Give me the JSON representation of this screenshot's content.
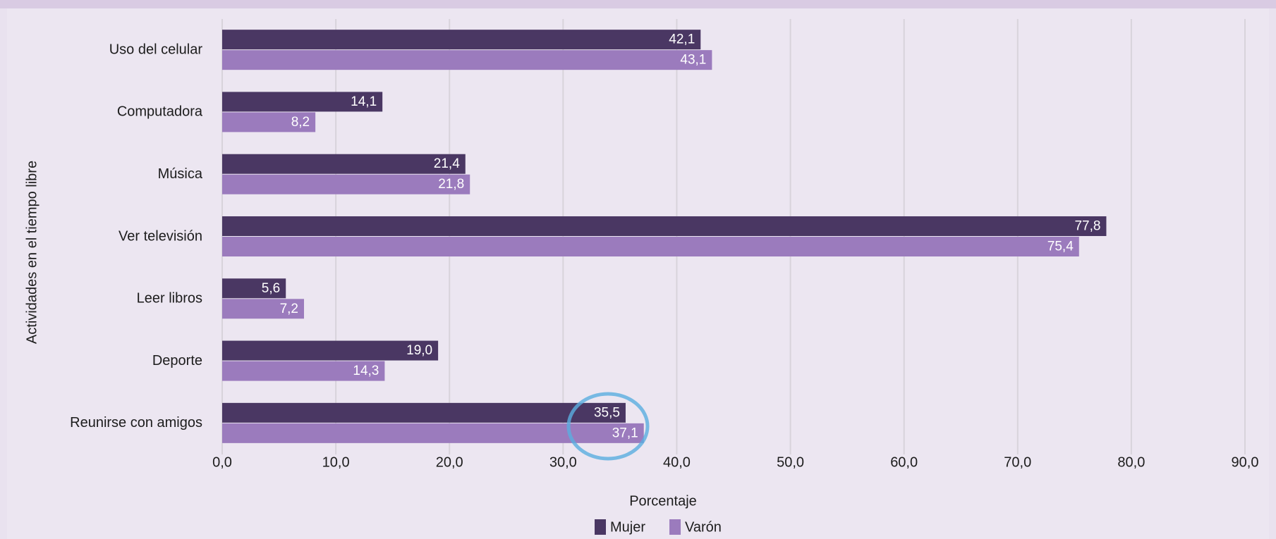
{
  "chart_data": {
    "type": "hbar",
    "categories": [
      "Uso del celular",
      "Computadora",
      "Música",
      "Ver televisión",
      "Leer libros",
      "Deporte",
      "Reunirse con amigos"
    ],
    "series": [
      {
        "name": "Mujer",
        "color": "#4a3763",
        "values": [
          42.1,
          14.1,
          21.4,
          77.8,
          5.6,
          19.0,
          35.5
        ],
        "value_labels": [
          "42,1",
          "14,1",
          "21,4",
          "77,8",
          "5,6",
          "19,0",
          "35,5"
        ]
      },
      {
        "name": "Varón",
        "color": "#9b7bbd",
        "values": [
          43.1,
          8.2,
          21.8,
          75.4,
          7.2,
          14.3,
          37.1
        ],
        "value_labels": [
          "43,1",
          "8,2",
          "21,8",
          "75,4",
          "7,2",
          "14,3",
          "37,1"
        ]
      }
    ],
    "xlim": [
      0,
      90
    ],
    "xticks": [
      {
        "value": 0,
        "label": "0,0"
      },
      {
        "value": 10,
        "label": "10,0"
      },
      {
        "value": 20,
        "label": "20,0"
      },
      {
        "value": 30,
        "label": "30,0"
      },
      {
        "value": 40,
        "label": "40,0"
      },
      {
        "value": 50,
        "label": "50,0"
      },
      {
        "value": 60,
        "label": "60,0"
      },
      {
        "value": 70,
        "label": "70,0"
      },
      {
        "value": 80,
        "label": "80,0"
      },
      {
        "value": 90,
        "label": "90,0"
      }
    ],
    "x_label": "Porcentaje",
    "y_label": "Actividades en el tiempo libre",
    "grid": true,
    "legend": "bottom"
  }
}
